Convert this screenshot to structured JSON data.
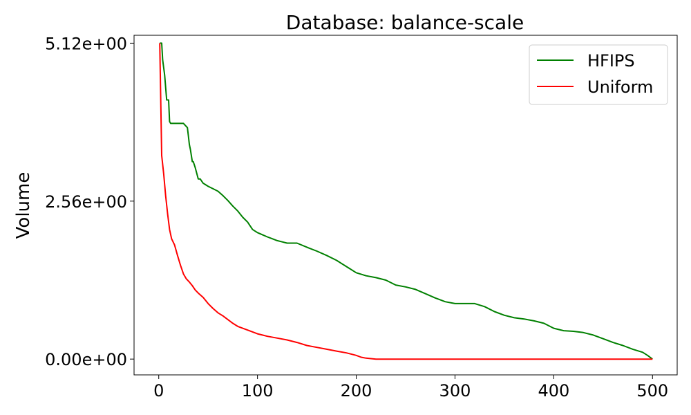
{
  "chart_data": {
    "type": "line",
    "title": "Database: balance-scale",
    "xlabel": "",
    "ylabel": "Volume",
    "xlim": [
      -25,
      525
    ],
    "ylim": [
      -0.256,
      5.248
    ],
    "xticks": [
      0,
      100,
      200,
      300,
      400,
      500
    ],
    "xtick_labels": [
      "0",
      "100",
      "200",
      "300",
      "400",
      "500"
    ],
    "yticks": [
      0,
      2.56,
      5.12
    ],
    "ytick_labels": [
      "0.00e+00",
      "2.56e+00",
      "5.12e+00"
    ],
    "grid": false,
    "legend_position": "top-right",
    "series": [
      {
        "name": "HFIPS",
        "color": "#008000",
        "x": [
          1,
          3,
          4,
          6,
          8,
          10,
          11,
          12,
          15,
          20,
          25,
          29,
          30,
          31,
          32,
          33,
          34,
          35,
          37,
          40,
          42,
          45,
          50,
          55,
          60,
          65,
          70,
          75,
          80,
          85,
          90,
          95,
          100,
          110,
          115,
          120,
          125,
          130,
          140,
          152,
          160,
          170,
          180,
          190,
          200,
          210,
          220,
          230,
          240,
          250,
          260,
          270,
          280,
          290,
          300,
          310,
          320,
          330,
          340,
          350,
          360,
          370,
          380,
          390,
          400,
          410,
          420,
          430,
          440,
          450,
          460,
          470,
          480,
          490,
          495,
          500
        ],
        "y": [
          5.12,
          5.12,
          4.85,
          4.6,
          4.2,
          4.2,
          3.85,
          3.82,
          3.82,
          3.82,
          3.82,
          3.75,
          3.62,
          3.48,
          3.4,
          3.3,
          3.2,
          3.2,
          3.1,
          2.92,
          2.92,
          2.85,
          2.8,
          2.76,
          2.72,
          2.65,
          2.57,
          2.48,
          2.4,
          2.3,
          2.22,
          2.1,
          2.05,
          1.98,
          1.95,
          1.92,
          1.9,
          1.88,
          1.88,
          1.8,
          1.75,
          1.68,
          1.6,
          1.5,
          1.4,
          1.35,
          1.32,
          1.28,
          1.2,
          1.17,
          1.13,
          1.06,
          0.99,
          0.93,
          0.9,
          0.9,
          0.9,
          0.85,
          0.77,
          0.71,
          0.67,
          0.65,
          0.62,
          0.58,
          0.5,
          0.46,
          0.45,
          0.43,
          0.39,
          0.33,
          0.27,
          0.22,
          0.16,
          0.11,
          0.06,
          0.0
        ]
      },
      {
        "name": "Uniform",
        "color": "#ff0000",
        "x": [
          1,
          3,
          5,
          7,
          9,
          11,
          13,
          16,
          19,
          22,
          25,
          28,
          31,
          34,
          37,
          40,
          45,
          50,
          55,
          60,
          65,
          70,
          75,
          80,
          90,
          100,
          110,
          120,
          130,
          140,
          150,
          160,
          170,
          180,
          190,
          200,
          205,
          210,
          220,
          230,
          500
        ],
        "y": [
          5.12,
          3.3,
          3.0,
          2.65,
          2.35,
          2.1,
          1.95,
          1.85,
          1.68,
          1.52,
          1.38,
          1.3,
          1.25,
          1.19,
          1.12,
          1.07,
          1.0,
          0.9,
          0.82,
          0.75,
          0.7,
          0.64,
          0.58,
          0.53,
          0.47,
          0.41,
          0.37,
          0.34,
          0.31,
          0.27,
          0.22,
          0.19,
          0.16,
          0.13,
          0.1,
          0.06,
          0.03,
          0.015,
          0.0,
          0.0,
          0.0
        ]
      }
    ]
  }
}
